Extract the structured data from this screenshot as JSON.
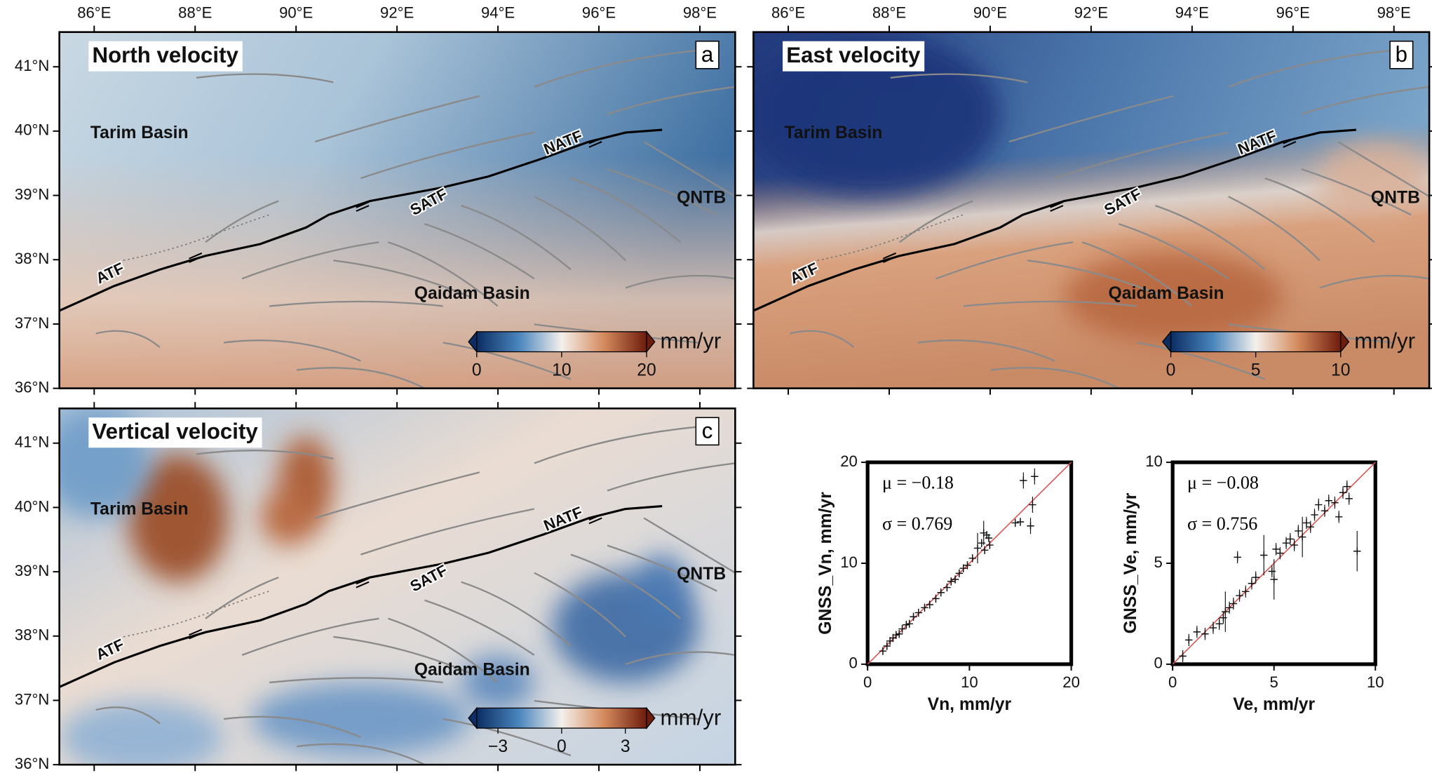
{
  "maps": {
    "xlim": [
      85.31,
      98.7
    ],
    "ylim": [
      36,
      41.54
    ],
    "lon_ticks": [
      {
        "value": 86,
        "label": "86°E"
      },
      {
        "value": 88,
        "label": "88°E"
      },
      {
        "value": 90,
        "label": "90°E"
      },
      {
        "value": 92,
        "label": "92°E"
      },
      {
        "value": 94,
        "label": "94°E"
      },
      {
        "value": 96,
        "label": "96°E"
      },
      {
        "value": 98,
        "label": "98°E"
      }
    ],
    "lat_ticks": [
      {
        "value": 36,
        "label": "36°N"
      },
      {
        "value": 37,
        "label": "37°N"
      },
      {
        "value": 38,
        "label": "38°N"
      },
      {
        "value": 39,
        "label": "39°N"
      },
      {
        "value": 40,
        "label": "40°N"
      },
      {
        "value": 41,
        "label": "41°N"
      }
    ],
    "labels": [
      "Tarim Basin",
      "QNTB",
      "Qaidam Basin",
      "ATF",
      "SATF",
      "NATF"
    ],
    "panels": [
      {
        "title": "North velocity",
        "letter": "a",
        "colorbar": {
          "range": [
            0,
            20
          ],
          "ticks": [
            0,
            10,
            20
          ],
          "unit": "mm/yr"
        }
      },
      {
        "title": "East velocity",
        "letter": "b",
        "colorbar": {
          "range": [
            0,
            10
          ],
          "ticks": [
            0,
            5,
            10
          ],
          "unit": "mm/yr"
        }
      },
      {
        "title": "Vertical velocity",
        "letter": "c",
        "colorbar": {
          "range": [
            -4,
            4
          ],
          "ticks": [
            {
              "value": -3,
              "label": "−3"
            },
            0,
            3
          ],
          "unit": "mm/yr"
        }
      }
    ]
  },
  "chart_data": [
    {
      "type": "scatter",
      "xlabel": "Vn, mm/yr",
      "ylabel": "GNSS_Vn, mm/yr",
      "annotations": [
        "μ = −0.18",
        "σ = 0.769"
      ],
      "xlim": [
        0,
        20
      ],
      "ylim": [
        0,
        20
      ],
      "xticks": [
        0,
        10,
        20
      ],
      "yticks": [
        0,
        10,
        20
      ],
      "color": "#111111",
      "reference_line_color": "#d9534f",
      "x": [
        1.5,
        1.9,
        2.2,
        2.5,
        2.8,
        3.1,
        3.4,
        3.8,
        4.1,
        4.5,
        5.0,
        5.6,
        6.1,
        6.7,
        7.2,
        7.8,
        8.2,
        8.6,
        9.0,
        9.4,
        9.8,
        10.3,
        10.8,
        11.2,
        11.5,
        11.7,
        11.9,
        12.0,
        11.4,
        14.5,
        15.0,
        15.3,
        16.0,
        16.2,
        16.4
      ],
      "values": [
        1.3,
        1.8,
        2.3,
        2.6,
        2.9,
        3.0,
        3.5,
        3.9,
        4.0,
        4.7,
        5.1,
        5.6,
        5.9,
        6.5,
        7.1,
        7.6,
        8.2,
        8.4,
        9.0,
        9.5,
        9.8,
        10.5,
        11.5,
        12.0,
        11.3,
        12.8,
        12.5,
        11.8,
        13.0,
        14.0,
        14.1,
        18.2,
        13.7,
        15.8,
        18.6
      ],
      "errors": [
        0.4,
        0.4,
        0.4,
        0.4,
        0.4,
        0.4,
        0.4,
        0.4,
        0.4,
        0.4,
        0.4,
        0.4,
        0.4,
        0.4,
        0.4,
        0.4,
        0.4,
        0.4,
        0.4,
        0.4,
        0.4,
        0.4,
        1.5,
        0.4,
        0.4,
        0.4,
        0.4,
        0.4,
        1.2,
        0.4,
        0.4,
        0.8,
        0.8,
        0.8,
        0.8
      ]
    },
    {
      "type": "scatter",
      "xlabel": "Ve, mm/yr",
      "ylabel": "GNSS_Ve, mm/yr",
      "annotations": [
        "μ = −0.08",
        "σ = 0.756"
      ],
      "xlim": [
        0,
        10
      ],
      "ylim": [
        0,
        10
      ],
      "xticks": [
        0,
        5,
        10
      ],
      "yticks": [
        0,
        5,
        10
      ],
      "color": "#111111",
      "reference_line_color": "#d9534f",
      "x": [
        0.5,
        0.8,
        1.2,
        1.6,
        2.0,
        2.3,
        2.5,
        2.6,
        2.8,
        3.0,
        3.2,
        3.3,
        3.6,
        3.9,
        4.1,
        4.5,
        4.9,
        5.0,
        5.1,
        5.3,
        5.6,
        5.8,
        6.0,
        6.2,
        6.4,
        6.6,
        6.8,
        7.0,
        7.2,
        7.5,
        7.7,
        8.0,
        8.2,
        8.4,
        8.6,
        8.7,
        9.1
      ],
      "values": [
        0.4,
        1.2,
        1.6,
        1.5,
        1.8,
        2.0,
        2.3,
        2.6,
        2.8,
        3.0,
        5.3,
        3.4,
        3.6,
        4.0,
        4.3,
        5.4,
        4.6,
        4.2,
        5.7,
        5.5,
        6.0,
        6.2,
        5.9,
        6.6,
        6.3,
        7.0,
        6.8,
        7.4,
        7.9,
        7.6,
        8.1,
        8.0,
        7.3,
        8.5,
        8.8,
        8.2,
        5.6
      ],
      "errors": [
        0.3,
        0.3,
        0.3,
        0.3,
        0.3,
        0.3,
        0.3,
        1.0,
        0.3,
        0.3,
        0.3,
        0.3,
        0.3,
        0.3,
        0.3,
        1.0,
        0.3,
        1.0,
        0.3,
        0.3,
        0.3,
        0.3,
        0.3,
        0.3,
        1.0,
        0.3,
        0.3,
        0.3,
        0.3,
        0.3,
        0.3,
        0.3,
        0.3,
        0.3,
        0.3,
        0.3,
        1.0
      ]
    }
  ]
}
